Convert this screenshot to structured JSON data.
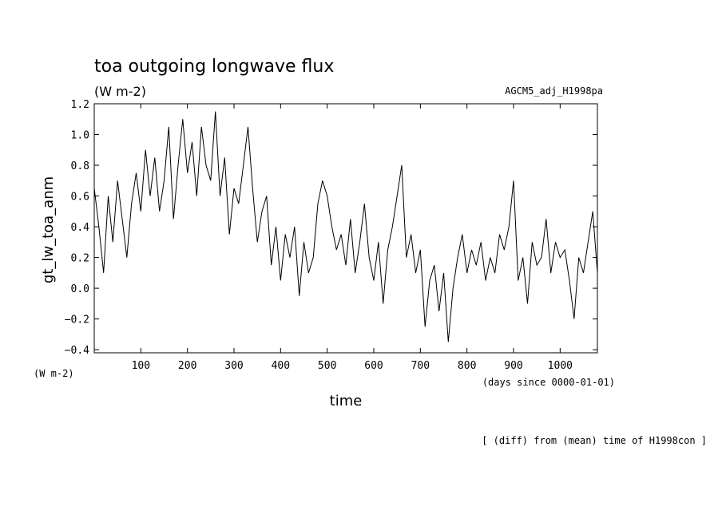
{
  "chart_data": {
    "type": "line",
    "title": "toa outgoing longwave flux",
    "units": "(W m-2)",
    "experiment": "AGCM5_adj_H1998pa",
    "ylabel": "gt_lw_toa_anm",
    "y_units": "(W m-2)",
    "xlabel": "time",
    "x_units": "(days since 0000-01-01)",
    "note": "[ (diff) from (mean) time of H1998con ]",
    "xlim": [
      0,
      1080
    ],
    "ylim": [
      -0.42,
      1.2
    ],
    "x_ticks": [
      100,
      200,
      300,
      400,
      500,
      600,
      700,
      800,
      900,
      1000
    ],
    "y_ticks": [
      -0.4,
      -0.2,
      0.0,
      0.2,
      0.4,
      0.6,
      0.8,
      1.0,
      1.2
    ],
    "x_tick_labels": [
      "100",
      "200",
      "300",
      "400",
      "500",
      "600",
      "700",
      "800",
      "900",
      "1000"
    ],
    "y_tick_labels": [
      "−0.4",
      "−0.2",
      "0.0",
      "0.2",
      "0.4",
      "0.6",
      "0.8",
      "1.0",
      "1.2"
    ],
    "grid": false,
    "line_color": "#000000",
    "series": [
      {
        "x": [
          0,
          10,
          20,
          30,
          40,
          50,
          60,
          70,
          80,
          90,
          100,
          110,
          120,
          130,
          140,
          150,
          160,
          170,
          180,
          190,
          200,
          210,
          220,
          230,
          240,
          250,
          260,
          270,
          280,
          290,
          300,
          310,
          320,
          330,
          340,
          350,
          360,
          370,
          380,
          390,
          400,
          410,
          420,
          430,
          440,
          450,
          460,
          470,
          480,
          490,
          500,
          510,
          520,
          530,
          540,
          550,
          560,
          570,
          580,
          590,
          600,
          610,
          620,
          630,
          640,
          650,
          660,
          670,
          680,
          690,
          700,
          710,
          720,
          730,
          740,
          750,
          760,
          770,
          780,
          790,
          800,
          810,
          820,
          830,
          840,
          850,
          860,
          870,
          880,
          890,
          900,
          910,
          920,
          930,
          940,
          950,
          960,
          970,
          980,
          990,
          1000,
          1010,
          1020,
          1030,
          1040,
          1050,
          1060,
          1070,
          1080
        ],
        "y": [
          0.65,
          0.4,
          0.1,
          0.6,
          0.3,
          0.7,
          0.45,
          0.2,
          0.55,
          0.75,
          0.5,
          0.9,
          0.6,
          0.85,
          0.5,
          0.7,
          1.05,
          0.45,
          0.8,
          1.1,
          0.75,
          0.95,
          0.6,
          1.05,
          0.8,
          0.7,
          1.15,
          0.6,
          0.85,
          0.35,
          0.65,
          0.55,
          0.8,
          1.05,
          0.65,
          0.3,
          0.5,
          0.6,
          0.15,
          0.4,
          0.05,
          0.35,
          0.2,
          0.4,
          -0.05,
          0.3,
          0.1,
          0.2,
          0.55,
          0.7,
          0.6,
          0.4,
          0.25,
          0.35,
          0.15,
          0.45,
          0.1,
          0.3,
          0.55,
          0.2,
          0.05,
          0.3,
          -0.1,
          0.25,
          0.4,
          0.6,
          0.8,
          0.2,
          0.35,
          0.1,
          0.25,
          -0.25,
          0.05,
          0.15,
          -0.15,
          0.1,
          -0.35,
          0.0,
          0.2,
          0.35,
          0.1,
          0.25,
          0.15,
          0.3,
          0.05,
          0.2,
          0.1,
          0.35,
          0.25,
          0.4,
          0.7,
          0.05,
          0.2,
          -0.1,
          0.3,
          0.15,
          0.2,
          0.45,
          0.1,
          0.3,
          0.2,
          0.25,
          0.05,
          -0.2,
          0.2,
          0.1,
          0.3,
          0.5,
          0.1
        ]
      }
    ]
  }
}
